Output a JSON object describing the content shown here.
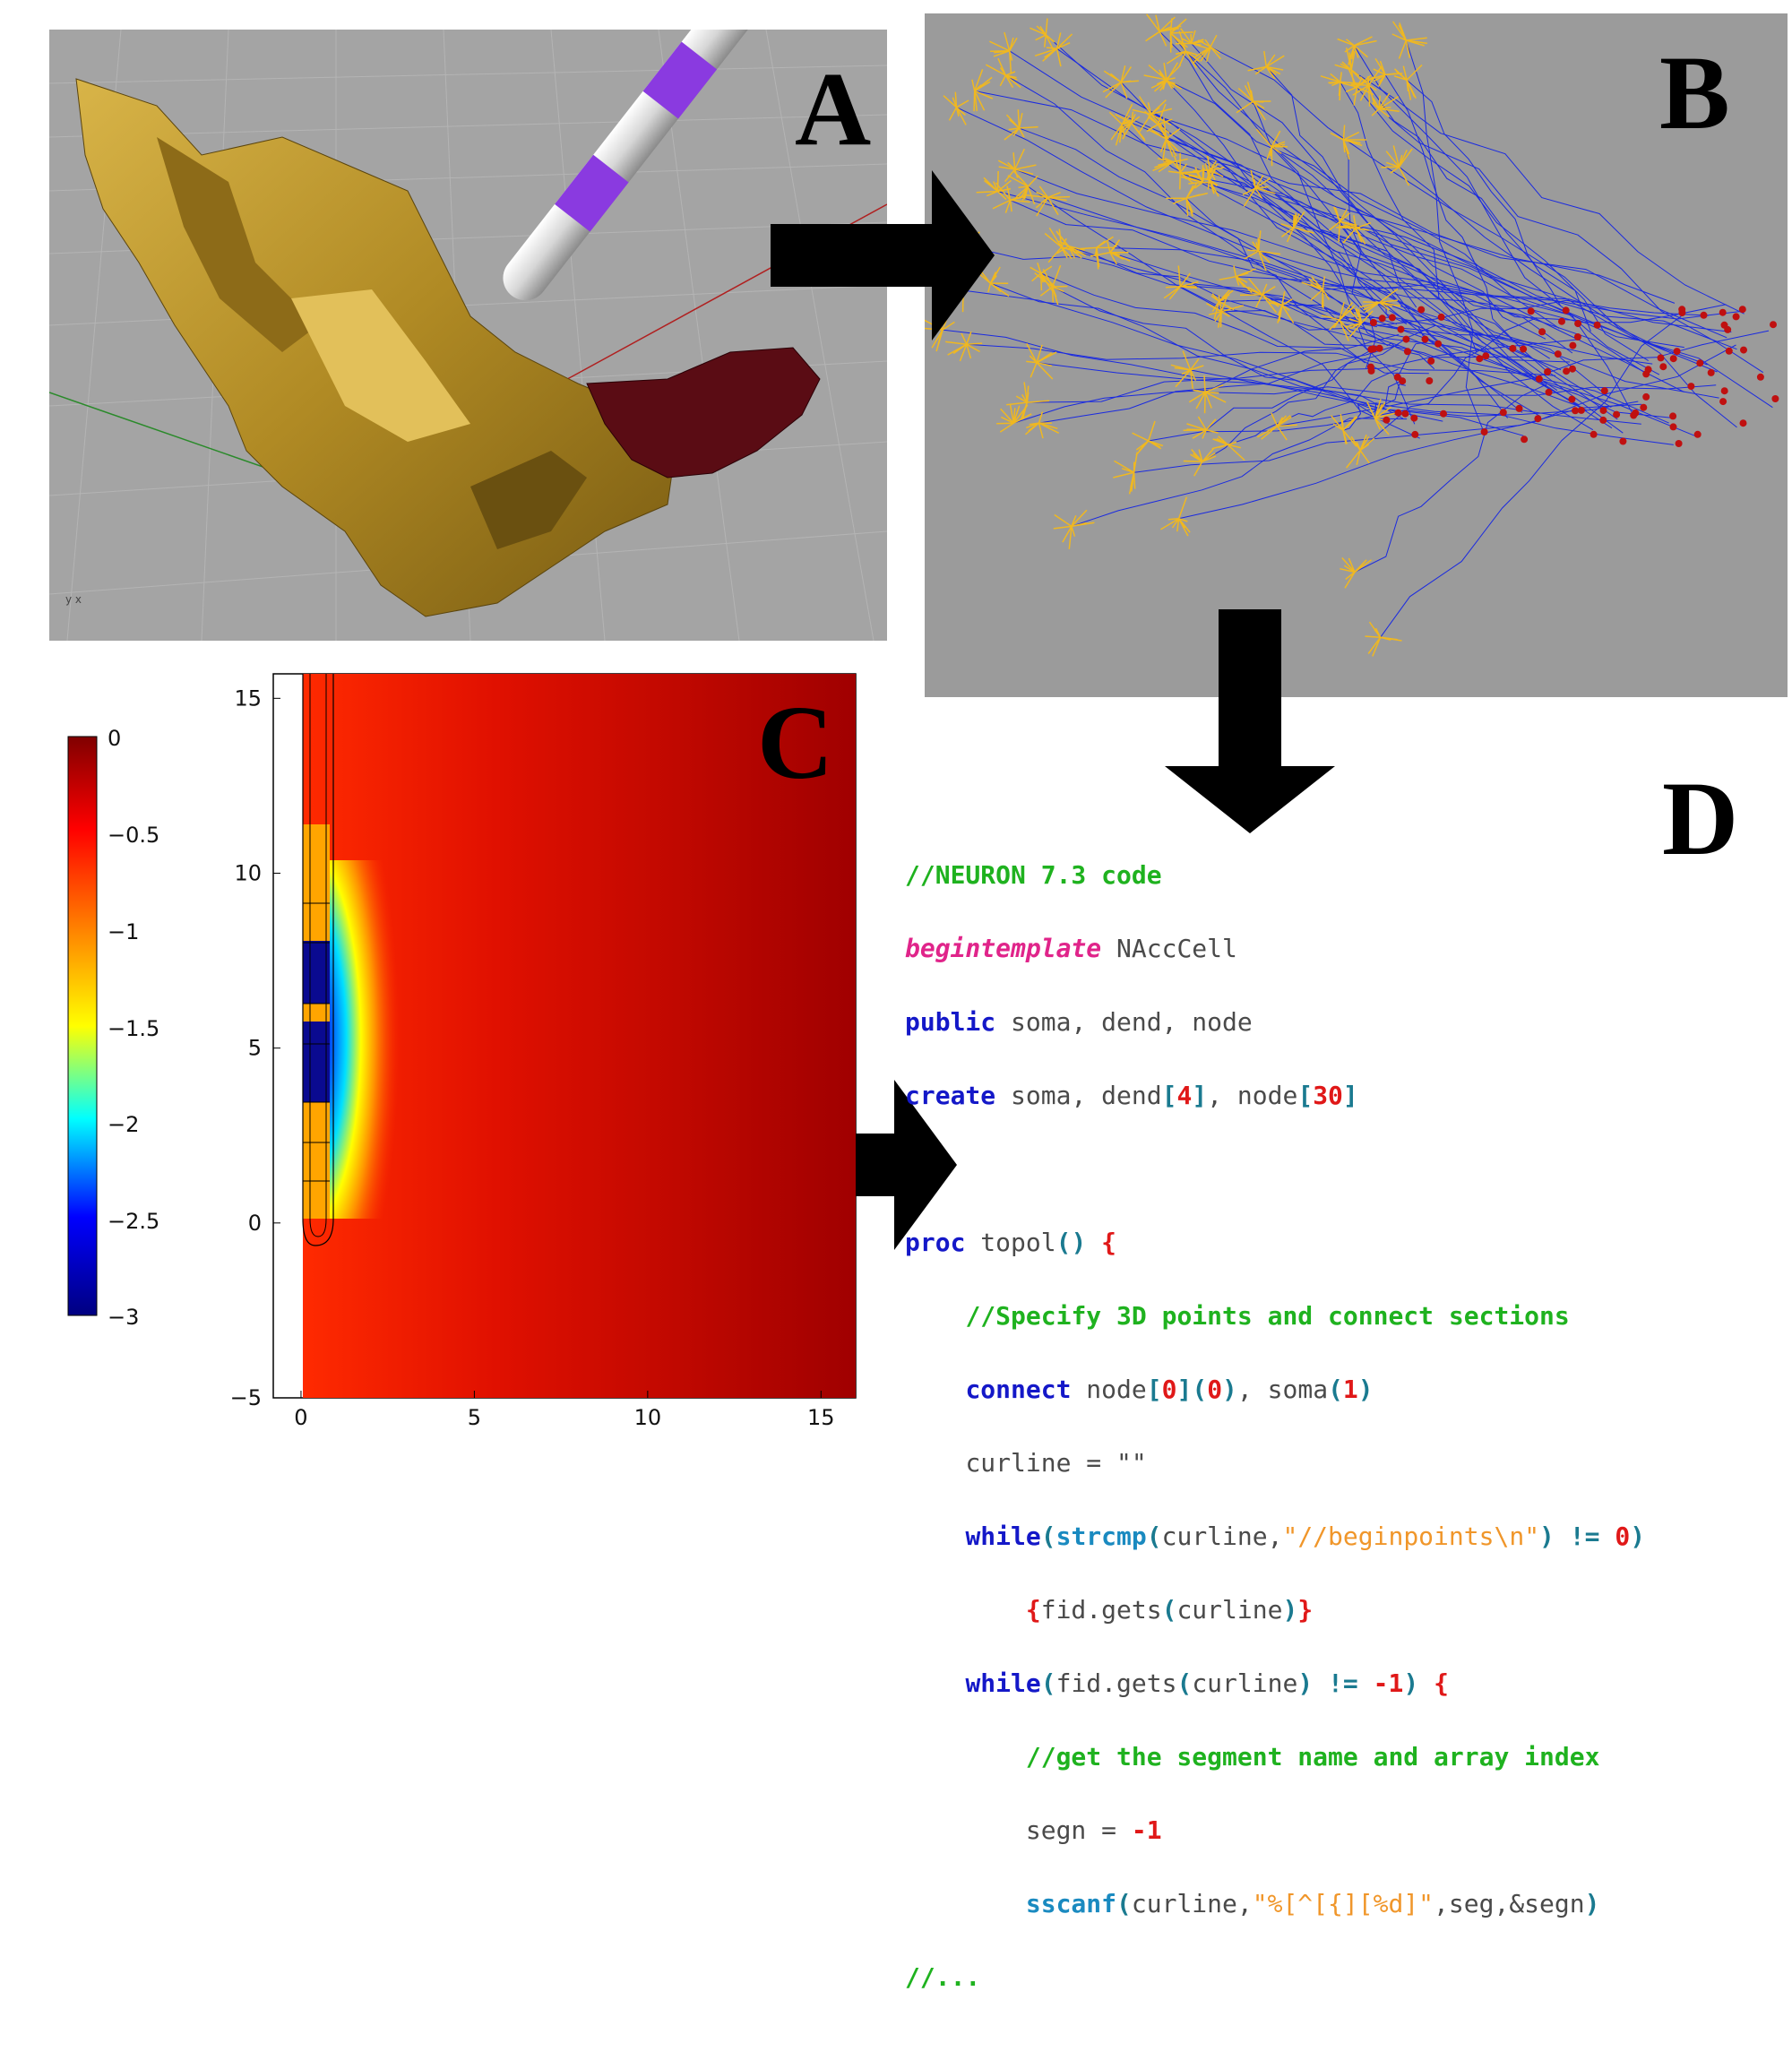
{
  "panels": {
    "a": {
      "letter": "A"
    },
    "b": {
      "letter": "B"
    },
    "c": {
      "letter": "C"
    },
    "d": {
      "letter": "D"
    }
  },
  "colorbar": {
    "ticks": [
      "0",
      "−0.5",
      "−1",
      "−1.5",
      "−2",
      "−2.5",
      "−3"
    ],
    "colors": [
      "#800000",
      "#ff0000",
      "#ff8000",
      "#ffff00",
      "#00ffff",
      "#0000ff",
      "#000080"
    ]
  },
  "chart_data": {
    "type": "heatmap",
    "x_ticks": [
      "0",
      "5",
      "10",
      "15"
    ],
    "y_ticks": [
      "15",
      "10",
      "5",
      "0",
      "−5"
    ],
    "xlim": [
      -0.8,
      16
    ],
    "ylim": [
      -5,
      15.7
    ],
    "clim": [
      -3,
      0
    ]
  },
  "code": {
    "l1": "//NEURON 7.3 code",
    "l2_kw": "begintemplate",
    "l2_rest": " NAccCell",
    "l3_kw": "public",
    "l3_rest": " soma, dend, node",
    "l4_kw": "create",
    "l4_a": " soma, dend",
    "l4_n1": "4",
    "l4_b": ", node",
    "l4_n2": "30",
    "l6_kw": "proc",
    "l6_rest": " topol",
    "l6_paren": "()",
    "l6_brace": "{",
    "l7": "//Specify 3D points and connect sections",
    "l8_kw": "connect",
    "l8_a": " node",
    "l8_n1": "0",
    "l8_n2": "0",
    "l8_b": ", soma",
    "l8_n3": "1",
    "l9": "curline = \"\"",
    "l10_kw": "while",
    "l10_fn": "strcmp",
    "l10_a": "curline,",
    "l10_str": "\"//beginpoints\\n\"",
    "l10_op": "!=",
    "l10_n": "0",
    "l11_a": "fid.gets",
    "l11_b": "curline",
    "l12_kw": "while",
    "l12_a": "fid.gets",
    "l12_b": "curline",
    "l12_op": "!=",
    "l12_n": "-1",
    "l13": "//get the segment name and array index",
    "l14_a": "segn = ",
    "l14_n": "-1",
    "l15_fn": "sscanf",
    "l15_a": "curline,",
    "l15_str": "\"%[^[{][%d]\"",
    "l15_b": ",seg,&segn",
    "l16": "//..."
  }
}
